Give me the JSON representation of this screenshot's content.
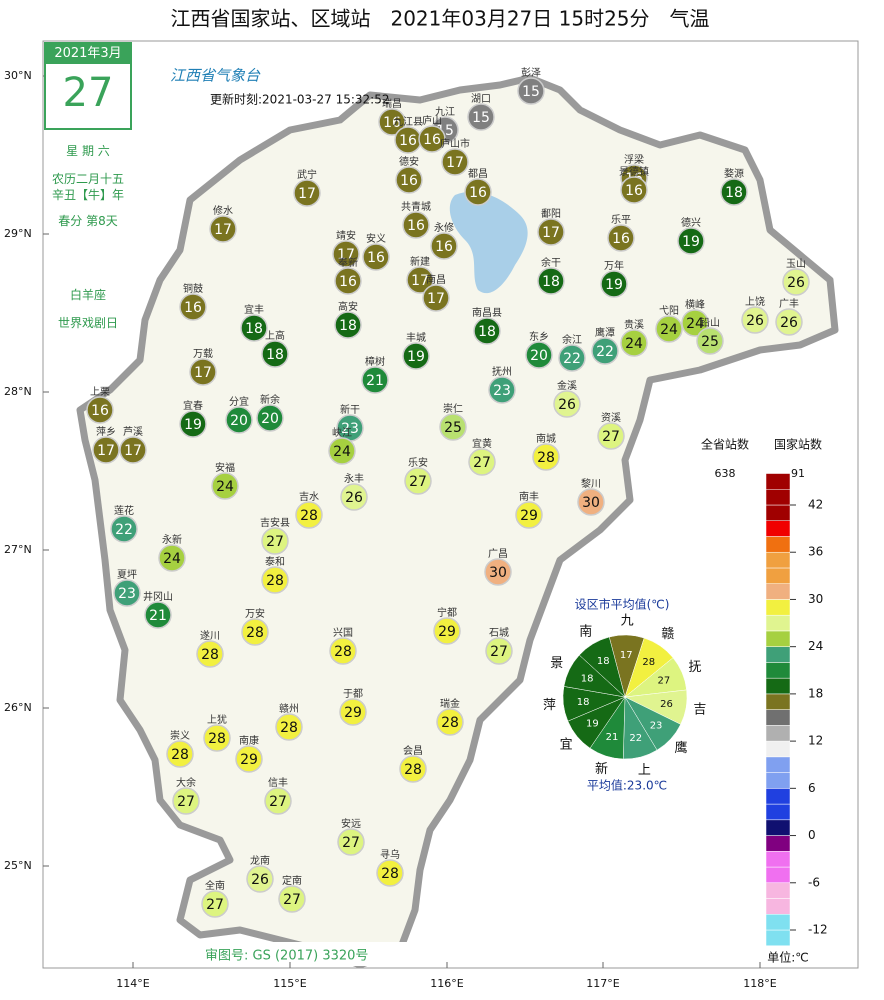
{
  "title": "江西省国家站、区域站　2021年03月27日 15时25分　气温",
  "logo": "江西省气象台",
  "update_time": "更新时刻:2021-03-27 15:32:52",
  "audit_number": "审图号: GS (2017) 3320号",
  "calendar": {
    "month": "2021年3月",
    "day": "27",
    "weekday": "星 期 六",
    "lunar_date": "农历二月十五",
    "lunar_year": "辛丑【牛】年",
    "solar_term": "春分 第8天",
    "zodiac": "白羊座",
    "festival": "世界戏剧日"
  },
  "lat_ticks": [
    "30°N",
    "29°N",
    "28°N",
    "27°N",
    "26°N",
    "25°N"
  ],
  "lon_ticks": [
    "114°E",
    "115°E",
    "116°E",
    "117°E",
    "118°E"
  ],
  "stations": [
    {
      "name": "彭泽",
      "value": 15
    },
    {
      "name": "湖口",
      "value": 15
    },
    {
      "name": "九江",
      "value": 15
    },
    {
      "name": "瑞昌",
      "value": 16
    },
    {
      "name": "九江县",
      "value": 16
    },
    {
      "name": "庐山",
      "value": 16
    },
    {
      "name": "德安",
      "value": 16
    },
    {
      "name": "庐山市",
      "value": 17
    },
    {
      "name": "都昌",
      "value": 16
    },
    {
      "name": "共青城",
      "value": 16
    },
    {
      "name": "永修",
      "value": 16
    },
    {
      "name": "武宁",
      "value": 17
    },
    {
      "name": "修水",
      "value": 17
    },
    {
      "name": "靖安",
      "value": 17
    },
    {
      "name": "安义",
      "value": 16
    },
    {
      "name": "新建",
      "value": 17
    },
    {
      "name": "奉新",
      "value": 16
    },
    {
      "name": "南昌",
      "value": 17
    },
    {
      "name": "南昌县",
      "value": 18
    },
    {
      "name": "鄱阳",
      "value": 17
    },
    {
      "name": "浮梁",
      "value": 16
    },
    {
      "name": "景德镇",
      "value": 16
    },
    {
      "name": "婺源",
      "value": 18
    },
    {
      "name": "乐平",
      "value": 16
    },
    {
      "name": "德兴",
      "value": 19
    },
    {
      "name": "余干",
      "value": 18
    },
    {
      "name": "万年",
      "value": 19
    },
    {
      "name": "玉山",
      "value": 26
    },
    {
      "name": "广丰",
      "value": 26
    },
    {
      "name": "上饶",
      "value": 26
    },
    {
      "name": "横峰",
      "value": 24
    },
    {
      "name": "弋阳",
      "value": 24
    },
    {
      "name": "铅山",
      "value": 25
    },
    {
      "name": "贵溪",
      "value": 24
    },
    {
      "name": "鹰潭",
      "value": 22
    },
    {
      "name": "余江",
      "value": 22
    },
    {
      "name": "东乡",
      "value": 20
    },
    {
      "name": "丰城",
      "value": 19
    },
    {
      "name": "高安",
      "value": 18
    },
    {
      "name": "宜丰",
      "value": 18
    },
    {
      "name": "铜鼓",
      "value": 16
    },
    {
      "name": "上高",
      "value": 18
    },
    {
      "name": "万载",
      "value": 17
    },
    {
      "name": "樟树",
      "value": 21
    },
    {
      "name": "抚州",
      "value": 23
    },
    {
      "name": "金溪",
      "value": 26
    },
    {
      "name": "资溪",
      "value": 27
    },
    {
      "name": "崇仁",
      "value": 25
    },
    {
      "name": "宜黄",
      "value": 27
    },
    {
      "name": "南城",
      "value": 28
    },
    {
      "name": "黎川",
      "value": 30
    },
    {
      "name": "南丰",
      "value": 29
    },
    {
      "name": "广昌",
      "value": 30
    },
    {
      "name": "新干",
      "value": 23
    },
    {
      "name": "峡江",
      "value": 24
    },
    {
      "name": "新余",
      "value": 20
    },
    {
      "name": "分宜",
      "value": 20
    },
    {
      "name": "宜春",
      "value": 19
    },
    {
      "name": "上栗",
      "value": 16
    },
    {
      "name": "萍乡",
      "value": 17
    },
    {
      "name": "芦溪",
      "value": 17
    },
    {
      "name": "安福",
      "value": 24
    },
    {
      "name": "永丰",
      "value": 26
    },
    {
      "name": "乐安",
      "value": 27
    },
    {
      "name": "吉水",
      "value": 28
    },
    {
      "name": "吉安县",
      "value": 27
    },
    {
      "name": "莲花",
      "value": 22
    },
    {
      "name": "永新",
      "value": 24
    },
    {
      "name": "泰和",
      "value": 28
    },
    {
      "name": "井冈山",
      "value": 21
    },
    {
      "name": "夏坪",
      "value": 23
    },
    {
      "name": "遂川",
      "value": 28
    },
    {
      "name": "万安",
      "value": 28
    },
    {
      "name": "兴国",
      "value": 28
    },
    {
      "name": "宁都",
      "value": 29
    },
    {
      "name": "石城",
      "value": 27
    },
    {
      "name": "于都",
      "value": 29
    },
    {
      "name": "瑞金",
      "value": 28
    },
    {
      "name": "赣州",
      "value": 28
    },
    {
      "name": "上犹",
      "value": 28
    },
    {
      "name": "南康",
      "value": 29
    },
    {
      "name": "崇义",
      "value": 28
    },
    {
      "name": "会昌",
      "value": 28
    },
    {
      "name": "大余",
      "value": 27
    },
    {
      "name": "信丰",
      "value": 27
    },
    {
      "name": "安远",
      "value": 27
    },
    {
      "name": "寻乌",
      "value": 28
    },
    {
      "name": "龙南",
      "value": 26
    },
    {
      "name": "定南",
      "value": 27
    },
    {
      "name": "全南",
      "value": 27
    }
  ],
  "city_average": {
    "title": "设区市平均值(℃)",
    "average_label": "平均值:23.0℃",
    "cities": [
      {
        "name": "九",
        "value": 17
      },
      {
        "name": "赣",
        "value": 28
      },
      {
        "name": "抚",
        "value": 27
      },
      {
        "name": "吉",
        "value": 26
      },
      {
        "name": "鹰",
        "value": 23
      },
      {
        "name": "上",
        "value": 22
      },
      {
        "name": "新",
        "value": 21
      },
      {
        "name": "宜",
        "value": 19
      },
      {
        "name": "萍",
        "value": 18
      },
      {
        "name": "景",
        "value": 18
      },
      {
        "name": "南",
        "value": 18
      }
    ]
  },
  "legend": {
    "province_count_label": "全省站数",
    "province_count": 638,
    "national_count_label": "国家站数",
    "national_count": 91,
    "ticks": [
      42,
      36,
      30,
      24,
      18,
      12,
      6,
      0,
      -6,
      -12
    ],
    "unit_label": "单位:℃"
  }
}
